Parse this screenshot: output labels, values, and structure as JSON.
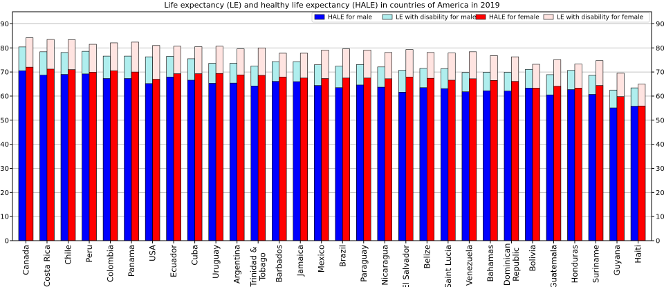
{
  "chart_data": {
    "type": "bar",
    "title": "Life expectancy (LE) and healthy life expectancy (HALE) in countries of America in 2019",
    "xlabel": "",
    "ylabel": "",
    "ylim": [
      0,
      95
    ],
    "yticks": [
      0,
      10,
      20,
      30,
      40,
      50,
      60,
      70,
      80,
      90
    ],
    "grid": true,
    "legend_position": "top-right",
    "categories": [
      "Canada",
      "Costa Rica",
      "Chile",
      "Peru",
      "Colombia",
      "Panama",
      "USA",
      "Ecuador",
      "Cuba",
      "Uruguay",
      "Argentina",
      "Trinidad & Tobago",
      "Barbados",
      "Jamaica",
      "Mexico",
      "Brazil",
      "Paraguay",
      "Nicaragua",
      "El Salvador",
      "Belize",
      "Saint Lucia",
      "Venezuela",
      "Bahamas",
      "Dominican Republic",
      "Bolivia",
      "Guatemala",
      "Honduras",
      "Suriname",
      "Guyana",
      "Haiti"
    ],
    "category_lines": [
      [
        "Canada"
      ],
      [
        "Costa Rica"
      ],
      [
        "Chile"
      ],
      [
        "Peru"
      ],
      [
        "Colombia"
      ],
      [
        "Panama"
      ],
      [
        "USA"
      ],
      [
        "Ecuador"
      ],
      [
        "Cuba"
      ],
      [
        "Uruguay"
      ],
      [
        "Argentina"
      ],
      [
        "Trinidad &",
        "Tobago"
      ],
      [
        "Barbados"
      ],
      [
        "Jamaica"
      ],
      [
        "Mexico"
      ],
      [
        "Brazil"
      ],
      [
        "Paraguay"
      ],
      [
        "Nicaragua"
      ],
      [
        "El Salvador"
      ],
      [
        "Belize"
      ],
      [
        "Saint Lucia"
      ],
      [
        "Venezuela"
      ],
      [
        "Bahamas"
      ],
      [
        "Dominican",
        "Republic"
      ],
      [
        "Bolivia"
      ],
      [
        "Guatemala"
      ],
      [
        "Honduras"
      ],
      [
        "Suriname"
      ],
      [
        "Guyana"
      ],
      [
        "Haiti"
      ]
    ],
    "series": [
      {
        "name": "HALE for male",
        "color": "#0000ff",
        "group": "male",
        "values": [
          70.5,
          68.7,
          69.0,
          69.2,
          67.3,
          67.3,
          65.2,
          67.9,
          66.6,
          65.3,
          65.4,
          64.2,
          66.1,
          66.0,
          64.4,
          63.5,
          64.6,
          63.7,
          61.6,
          63.5,
          63.1,
          61.8,
          62.2,
          62.1,
          63.3,
          60.5,
          62.7,
          60.7,
          55.1,
          55.8
        ]
      },
      {
        "name": "LE with disability for male",
        "color": "#afeeee",
        "group": "male",
        "values": [
          80.4,
          78.4,
          78.1,
          78.6,
          76.6,
          76.6,
          76.3,
          76.5,
          75.5,
          73.6,
          73.6,
          72.5,
          74.3,
          74.3,
          73.0,
          72.4,
          73.1,
          72.1,
          70.7,
          71.5,
          71.4,
          69.8,
          69.9,
          69.9,
          71.1,
          68.9,
          70.7,
          68.6,
          62.5,
          63.4
        ]
      },
      {
        "name": "HALE for female",
        "color": "#ff0000",
        "group": "female",
        "values": [
          72.0,
          71.2,
          71.0,
          69.9,
          70.5,
          70.0,
          67.0,
          69.3,
          69.3,
          69.4,
          68.8,
          68.6,
          67.9,
          67.5,
          67.3,
          67.5,
          67.5,
          67.2,
          67.9,
          67.4,
          66.6,
          67.2,
          66.5,
          66.1,
          63.3,
          64.1,
          63.3,
          64.4,
          59.8,
          55.9
        ]
      },
      {
        "name": "LE with disability for female",
        "color": "#ffe4e1",
        "group": "female",
        "values": [
          84.2,
          83.5,
          83.4,
          81.5,
          82.1,
          82.4,
          81.0,
          80.7,
          80.5,
          80.7,
          79.6,
          80.0,
          77.8,
          77.8,
          79.1,
          79.6,
          79.1,
          78.1,
          79.3,
          78.1,
          77.9,
          78.4,
          76.8,
          76.3,
          73.2,
          75.1,
          73.3,
          74.7,
          69.5,
          65.0
        ]
      }
    ]
  }
}
